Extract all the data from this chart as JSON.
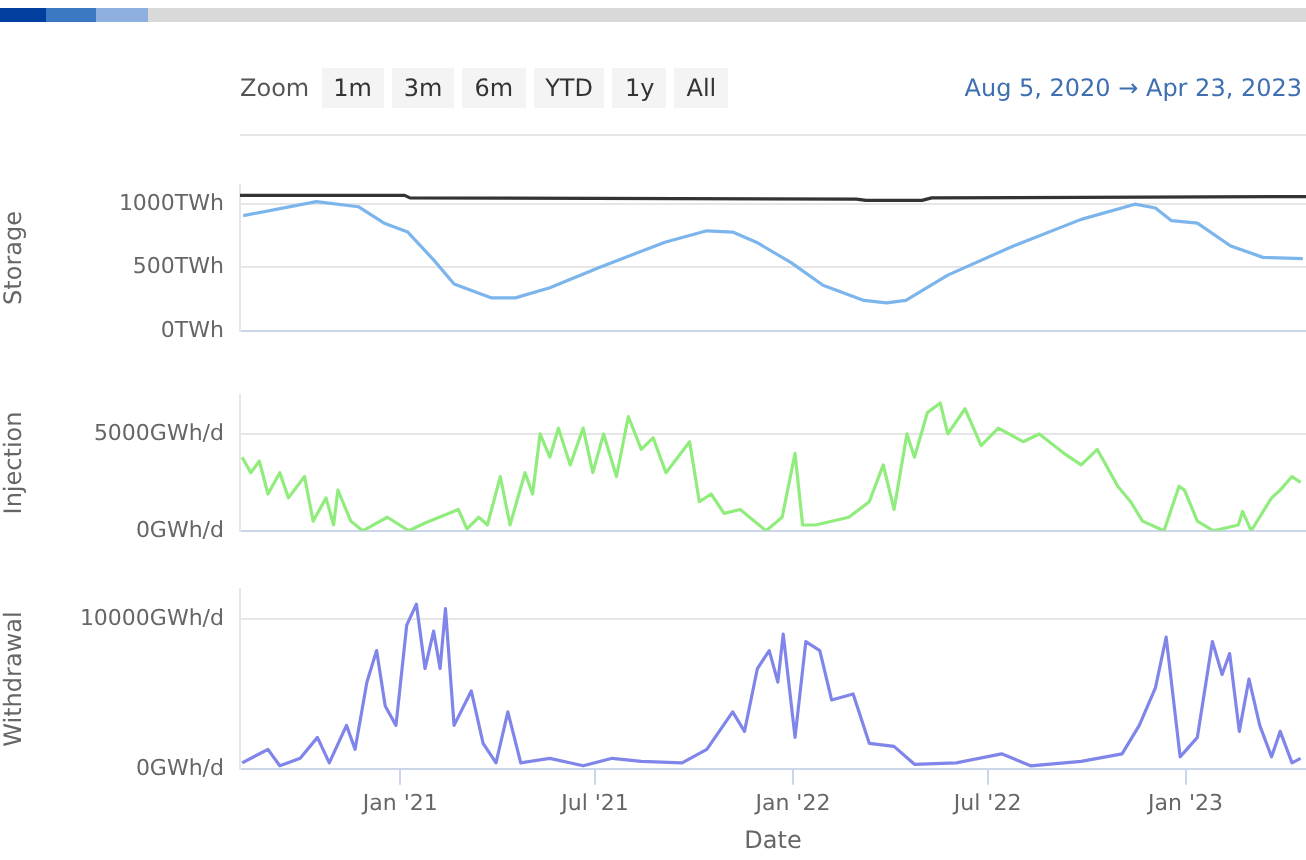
{
  "chart_data": [
    {
      "type": "line",
      "subtitle": "Aug 5, 2020 → Apr 23, 2023",
      "annotations": [
        "Zoom",
        "1m",
        "3m",
        "6m",
        "YTD",
        "1y",
        "All"
      ],
      "ylabel": "Storage",
      "tick_labels": "y",
      "grid": "y",
      "xlim": [
        "2020-08-05",
        "2023-04-23"
      ],
      "ylim": [
        0,
        1150
      ],
      "yticks": [
        {
          "value": 0,
          "label": "0TWh"
        },
        {
          "value": 500,
          "label": "500TWh"
        },
        {
          "value": 1000,
          "label": "1000TWh"
        }
      ],
      "series": [
        {
          "color": "#333333",
          "x": [
            "2020-08-05",
            "2021-01-05",
            "2021-01-10",
            "2022-03-01",
            "2022-03-10",
            "2022-05-01",
            "2022-05-10",
            "2023-04-23"
          ],
          "values": [
            1070,
            1070,
            1050,
            1040,
            1030,
            1030,
            1050,
            1060
          ]
        },
        {
          "color": "#7cb5ec",
          "x": [
            "2020-08-08",
            "2020-10-15",
            "2020-11-23",
            "2020-12-17",
            "2021-01-08",
            "2021-02-01",
            "2021-02-20",
            "2021-03-27",
            "2021-04-18",
            "2021-05-20",
            "2021-07-05",
            "2021-09-04",
            "2021-10-13",
            "2021-11-06",
            "2021-11-28",
            "2021-12-30",
            "2022-01-29",
            "2022-03-08",
            "2022-03-29",
            "2022-04-16",
            "2022-05-25",
            "2022-07-25",
            "2022-09-26",
            "2022-11-15",
            "2022-12-04",
            "2022-12-19",
            "2023-01-12",
            "2023-02-12",
            "2023-03-14",
            "2023-04-20"
          ],
          "values": [
            910,
            1020,
            980,
            850,
            780,
            560,
            370,
            260,
            260,
            340,
            500,
            700,
            790,
            780,
            700,
            540,
            360,
            240,
            220,
            240,
            440,
            670,
            880,
            1000,
            970,
            870,
            850,
            670,
            580,
            570
          ]
        }
      ]
    },
    {
      "type": "line",
      "ylabel": "Injection",
      "tick_labels": "y",
      "grid": "y",
      "xlim": [
        "2020-08-05",
        "2023-04-23"
      ],
      "ylim": [
        0,
        7000
      ],
      "yticks": [
        {
          "value": 0,
          "label": "0GWh/d"
        },
        {
          "value": 5000,
          "label": "5000GWh/d"
        }
      ],
      "series": [
        {
          "color": "#90ed7d",
          "x": [
            "2020-08-07",
            "2020-08-15",
            "2020-08-23",
            "2020-08-31",
            "2020-09-11",
            "2020-09-19",
            "2020-10-04",
            "2020-10-12",
            "2020-10-24",
            "2020-10-31",
            "2020-11-04",
            "2020-11-16",
            "2020-11-27",
            "2020-12-20",
            "2021-01-09",
            "2021-01-24",
            "2021-02-24",
            "2021-03-04",
            "2021-03-15",
            "2021-03-23",
            "2021-04-04",
            "2021-04-13",
            "2021-04-27",
            "2021-05-04",
            "2021-05-11",
            "2021-05-20",
            "2021-05-28",
            "2021-06-08",
            "2021-06-20",
            "2021-06-29",
            "2021-07-09",
            "2021-07-21",
            "2021-08-01",
            "2021-08-13",
            "2021-08-24",
            "2021-09-05",
            "2021-09-16",
            "2021-09-27",
            "2021-10-06",
            "2021-10-17",
            "2021-10-29",
            "2021-11-13",
            "2021-12-07",
            "2021-12-22",
            "2022-01-03",
            "2022-01-10",
            "2022-01-22",
            "2022-02-22",
            "2022-03-13",
            "2022-03-26",
            "2022-04-05",
            "2022-04-17",
            "2022-04-24",
            "2022-05-06",
            "2022-05-18",
            "2022-05-25",
            "2022-06-10",
            "2022-06-25",
            "2022-07-11",
            "2022-08-03",
            "2022-08-18",
            "2022-09-10",
            "2022-09-26",
            "2022-10-11",
            "2022-10-30",
            "2022-11-11",
            "2022-11-22",
            "2022-12-12",
            "2022-12-26",
            "2022-12-31",
            "2023-01-12",
            "2023-01-27",
            "2023-02-19",
            "2023-02-23",
            "2023-03-03",
            "2023-03-22",
            "2023-03-30",
            "2023-04-10",
            "2023-04-18"
          ],
          "values": [
            3800,
            3000,
            3600,
            1900,
            3000,
            1700,
            2800,
            500,
            1700,
            300,
            2100,
            500,
            0,
            700,
            0,
            400,
            1100,
            100,
            700,
            300,
            2800,
            300,
            3000,
            1900,
            5000,
            3800,
            5300,
            3400,
            5300,
            3000,
            5000,
            2800,
            5900,
            4200,
            4800,
            3000,
            3800,
            4600,
            1500,
            1900,
            900,
            1100,
            0,
            700,
            4000,
            300,
            300,
            700,
            1500,
            3400,
            1100,
            5000,
            3800,
            6100,
            6600,
            5000,
            6300,
            4400,
            5300,
            4600,
            5000,
            4000,
            3400,
            4200,
            2300,
            1500,
            500,
            0,
            2300,
            2100,
            500,
            0,
            300,
            1000,
            0,
            1700,
            2100,
            2800,
            2500
          ]
        }
      ]
    },
    {
      "type": "line",
      "ylabel": "Withdrawal",
      "xlabel": "Date",
      "grid": "y",
      "xlim": [
        "2020-08-05",
        "2023-04-23"
      ],
      "xticks": [
        {
          "value": "2021-01-01",
          "label": "Jan '21"
        },
        {
          "value": "2021-07-01",
          "label": "Jul '21"
        },
        {
          "value": "2022-01-01",
          "label": "Jan '22"
        },
        {
          "value": "2022-07-01",
          "label": "Jul '22"
        },
        {
          "value": "2023-01-01",
          "label": "Jan '23"
        }
      ],
      "ylim": [
        0,
        12000
      ],
      "yticks": [
        {
          "value": 0,
          "label": "0GWh/d"
        },
        {
          "value": 10000,
          "label": "10000GWh/d"
        }
      ],
      "series": [
        {
          "color": "#8085e9",
          "x": [
            "2020-08-07",
            "2020-08-31",
            "2020-09-11",
            "2020-09-30",
            "2020-10-16",
            "2020-10-27",
            "2020-11-12",
            "2020-11-20",
            "2020-12-01",
            "2020-12-10",
            "2020-12-18",
            "2020-12-28",
            "2021-01-07",
            "2021-01-16",
            "2021-01-24",
            "2021-02-01",
            "2021-02-07",
            "2021-02-12",
            "2021-02-20",
            "2021-03-08",
            "2021-03-19",
            "2021-03-31",
            "2021-04-11",
            "2021-04-23",
            "2021-05-20",
            "2021-06-20",
            "2021-07-17",
            "2021-08-13",
            "2021-09-20",
            "2021-10-13",
            "2021-11-06",
            "2021-11-17",
            "2021-11-29",
            "2021-12-10",
            "2021-12-18",
            "2021-12-23",
            "2022-01-03",
            "2022-01-13",
            "2022-01-26",
            "2022-02-06",
            "2022-02-26",
            "2022-03-13",
            "2022-04-05",
            "2022-04-24",
            "2022-06-02",
            "2022-07-14",
            "2022-08-10",
            "2022-09-26",
            "2022-11-03",
            "2022-11-19",
            "2022-12-04",
            "2022-12-14",
            "2022-12-27",
            "2023-01-12",
            "2023-01-26",
            "2023-02-04",
            "2023-02-11",
            "2023-02-20",
            "2023-03-01",
            "2023-03-11",
            "2023-03-22",
            "2023-03-30",
            "2023-04-10",
            "2023-04-18"
          ],
          "values": [
            400,
            1300,
            200,
            700,
            2100,
            400,
            2900,
            1300,
            5800,
            7900,
            4200,
            2900,
            9600,
            11000,
            6700,
            9200,
            6700,
            10700,
            2900,
            5200,
            1700,
            400,
            3800,
            400,
            700,
            200,
            700,
            500,
            400,
            1300,
            3800,
            2500,
            6700,
            7900,
            5800,
            9000,
            2100,
            8500,
            7900,
            4600,
            5000,
            1700,
            1500,
            300,
            400,
            1000,
            200,
            500,
            1000,
            2900,
            5400,
            8800,
            800,
            2100,
            8500,
            6300,
            7700,
            2500,
            6000,
            2900,
            800,
            2500,
            400,
            700
          ]
        }
      ]
    }
  ]
}
